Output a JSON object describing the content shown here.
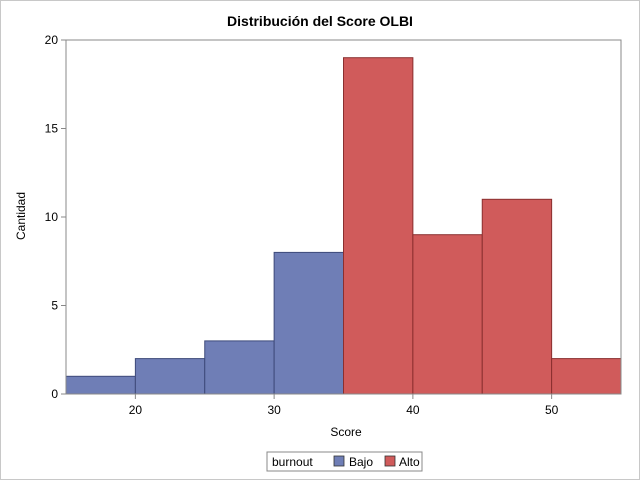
{
  "chart_data": {
    "type": "bar",
    "title": "Distribución del Score OLBI",
    "xlabel": "Score",
    "ylabel": "Cantidad",
    "xlim": [
      15,
      55
    ],
    "ylim": [
      0,
      20
    ],
    "x_ticks": [
      "20",
      "30",
      "40",
      "50"
    ],
    "x_tick_values": [
      20,
      30,
      40,
      50
    ],
    "y_ticks": [
      "0",
      "5",
      "10",
      "15",
      "20"
    ],
    "y_tick_values": [
      0,
      5,
      10,
      15,
      20
    ],
    "grid": false,
    "legend": {
      "title": "burnout",
      "placement": "bottom-center",
      "entries": [
        {
          "name": "Bajo",
          "color": "#6f7eb6"
        },
        {
          "name": "Alto",
          "color": "#d05b5b"
        }
      ]
    },
    "series": [
      {
        "name": "Bajo",
        "color": "#6f7eb6",
        "stroke": "#3e4a7a",
        "bins": [
          {
            "x_start": 15,
            "x_end": 20,
            "count": 1
          },
          {
            "x_start": 20,
            "x_end": 25,
            "count": 2
          },
          {
            "x_start": 25,
            "x_end": 30,
            "count": 3
          },
          {
            "x_start": 30,
            "x_end": 35,
            "count": 8
          }
        ]
      },
      {
        "name": "Alto",
        "color": "#d05b5b",
        "stroke": "#8a2f2f",
        "bins": [
          {
            "x_start": 35,
            "x_end": 40,
            "count": 19
          },
          {
            "x_start": 40,
            "x_end": 45,
            "count": 9
          },
          {
            "x_start": 45,
            "x_end": 50,
            "count": 11
          },
          {
            "x_start": 50,
            "x_end": 55,
            "count": 2
          }
        ]
      }
    ]
  }
}
